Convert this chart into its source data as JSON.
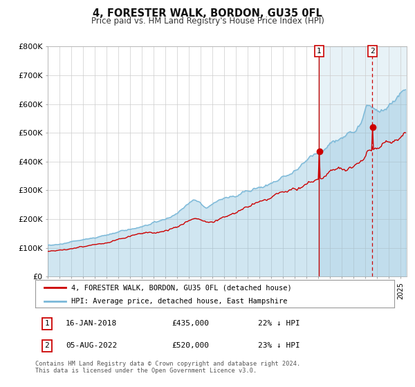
{
  "title": "4, FORESTER WALK, BORDON, GU35 0FL",
  "subtitle": "Price paid vs. HM Land Registry's House Price Index (HPI)",
  "ylim": [
    0,
    800000
  ],
  "yticks": [
    0,
    100000,
    200000,
    300000,
    400000,
    500000,
    600000,
    700000,
    800000
  ],
  "ytick_labels": [
    "£0",
    "£100K",
    "£200K",
    "£300K",
    "£400K",
    "£500K",
    "£600K",
    "£700K",
    "£800K"
  ],
  "xlim_start": 1995.0,
  "xlim_end": 2025.5,
  "hpi_color": "#7ab8d8",
  "hpi_fill_color": "#d6eaf8",
  "price_color": "#cc0000",
  "marker1_date": 2018.04,
  "marker1_price": 435000,
  "marker2_date": 2022.58,
  "marker2_price": 520000,
  "vline1_x": 2018.04,
  "vline2_x": 2022.58,
  "legend_label1": "4, FORESTER WALK, BORDON, GU35 0FL (detached house)",
  "legend_label2": "HPI: Average price, detached house, East Hampshire",
  "note1_date": "16-JAN-2018",
  "note1_price": "£435,000",
  "note1_hpi": "22% ↓ HPI",
  "note2_date": "05-AUG-2022",
  "note2_price": "£520,000",
  "note2_hpi": "23% ↓ HPI",
  "footer": "Contains HM Land Registry data © Crown copyright and database right 2024.\nThis data is licensed under the Open Government Licence v3.0.",
  "bg_color": "#ffffff",
  "grid_color": "#cccccc"
}
